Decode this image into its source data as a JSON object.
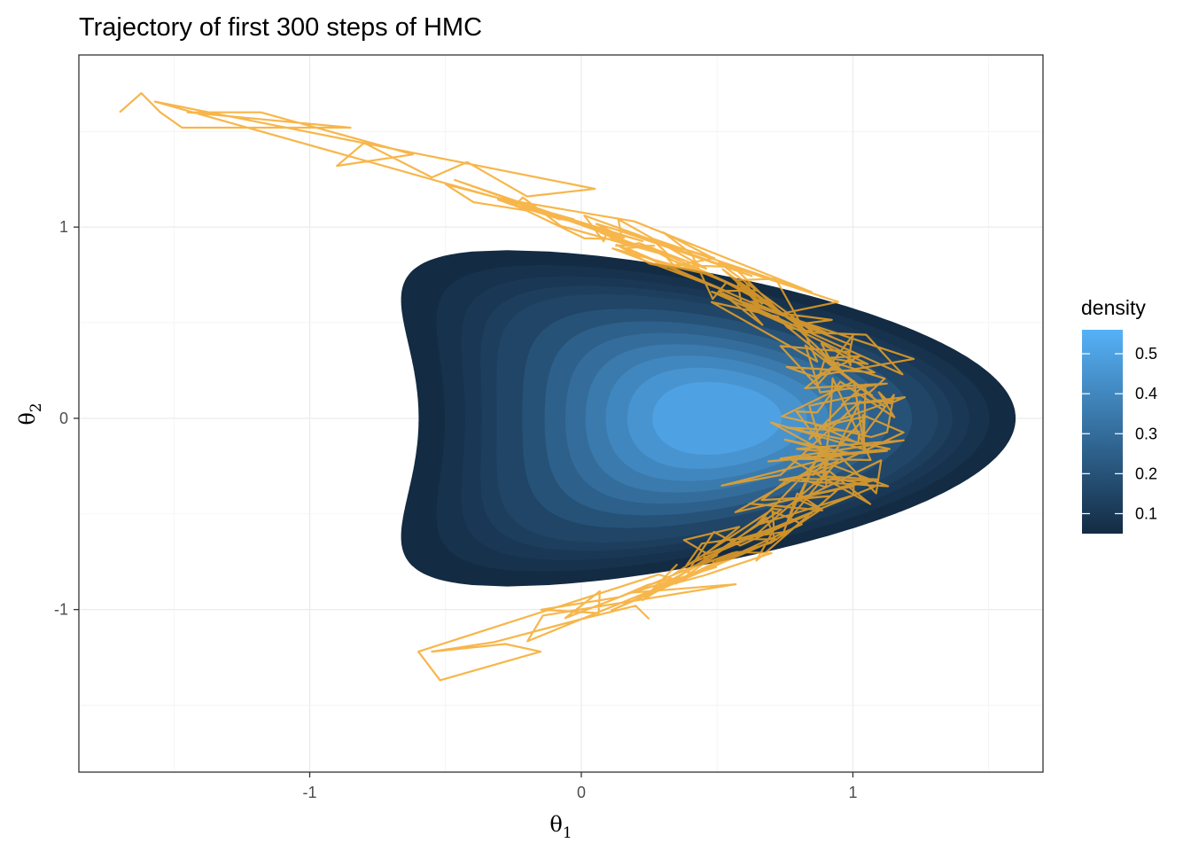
{
  "chart_data": {
    "type": "contour",
    "title": "Trajectory of first 300 steps of HMC",
    "xlabel": "θ",
    "xlabel_subscript": "1",
    "ylabel": "θ",
    "ylabel_subscript": "2",
    "xlim": [
      -1.85,
      1.7
    ],
    "ylim": [
      -1.85,
      1.9
    ],
    "x_ticks": [
      {
        "value": -1,
        "label": "-1"
      },
      {
        "value": 0,
        "label": "0"
      },
      {
        "value": 1,
        "label": "1"
      }
    ],
    "y_ticks": [
      {
        "value": -1,
        "label": "-1"
      },
      {
        "value": 0,
        "label": "0"
      },
      {
        "value": 1,
        "label": "1"
      }
    ],
    "grid": true,
    "density_model": {
      "center_x": 0.5,
      "center_y": 0,
      "curvature": 1.0,
      "sigma_x": 0.5,
      "sigma_y": 0.4
    },
    "density_levels": [
      0.05,
      0.075,
      0.1,
      0.125,
      0.15,
      0.2,
      0.25,
      0.3,
      0.35,
      0.4,
      0.45,
      0.5
    ],
    "legend": {
      "title": "density",
      "position": "right",
      "range": [
        0.05,
        0.56
      ],
      "ticks": [
        {
          "value": 0.1,
          "label": "0.1"
        },
        {
          "value": 0.2,
          "label": "0.2"
        },
        {
          "value": 0.3,
          "label": "0.3"
        },
        {
          "value": 0.4,
          "label": "0.4"
        },
        {
          "value": 0.5,
          "label": "0.5"
        }
      ],
      "color_low": "#132b43",
      "color_high": "#56b1f7"
    },
    "trajectory": {
      "name": "HMC trajectory",
      "steps": 300,
      "color": "#f5a623",
      "start_points": [
        [
          -1.7,
          1.6
        ],
        [
          -1.62,
          1.7
        ],
        [
          -1.55,
          1.6
        ],
        [
          -1.47,
          1.52
        ],
        [
          -1.25,
          1.52
        ],
        [
          -0.85,
          1.52
        ],
        [
          -1.45,
          1.6
        ],
        [
          -1.18,
          1.6
        ],
        [
          -0.62,
          1.38
        ],
        [
          -0.9,
          1.32
        ],
        [
          -0.8,
          1.44
        ],
        [
          -0.55,
          1.26
        ],
        [
          -0.42,
          1.34
        ],
        [
          -0.2,
          1.16
        ],
        [
          0.05,
          1.2
        ]
      ],
      "lower_points": [
        [
          -0.6,
          -1.22
        ],
        [
          -0.52,
          -1.37
        ],
        [
          -0.15,
          -1.22
        ],
        [
          -0.28,
          -1.18
        ],
        [
          -0.55,
          -1.22
        ],
        [
          -0.32,
          -1.17
        ],
        [
          0.0,
          -1.05
        ],
        [
          0.2,
          -0.98
        ],
        [
          0.25,
          -1.05
        ]
      ],
      "seed": 7
    }
  }
}
